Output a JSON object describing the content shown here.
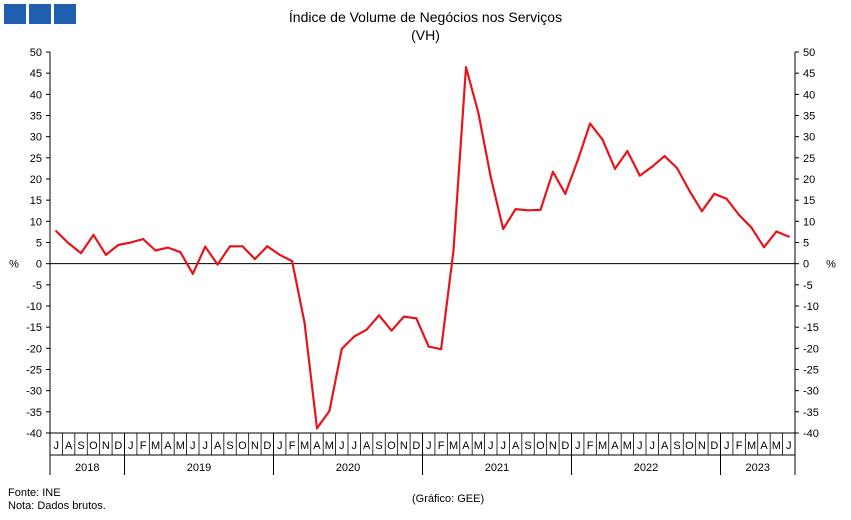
{
  "header": {
    "title": "Índice de Volume de Negócios nos Serviços",
    "subtitle": "(VH)"
  },
  "footer": {
    "source": "Fonte: INE",
    "note": "Nota: Dados brutos.",
    "credit": "(Gráfico: GEE)"
  },
  "colors": {
    "line": "#e8141b",
    "logo": "#1f5fae",
    "axis": "#000000"
  },
  "chart_data": {
    "type": "line",
    "title": "Índice de Volume de Negócios nos Serviços",
    "subtitle": "(VH)",
    "ylabel_left": "%",
    "ylabel_right": "%",
    "ylim": [
      -40,
      50
    ],
    "yticks": [
      50,
      45,
      40,
      35,
      30,
      25,
      20,
      15,
      10,
      5,
      0,
      -5,
      -10,
      -15,
      -20,
      -25,
      -30,
      -35,
      -40
    ],
    "grid": false,
    "legend": "none",
    "month_labels": [
      "J",
      "A",
      "S",
      "O",
      "N",
      "D",
      "J",
      "F",
      "M",
      "A",
      "M",
      "J",
      "J",
      "A",
      "S",
      "O",
      "N",
      "D",
      "J",
      "F",
      "M",
      "A",
      "M",
      "J",
      "J",
      "A",
      "S",
      "O",
      "N",
      "D",
      "J",
      "F",
      "M",
      "A",
      "M",
      "J",
      "J",
      "A",
      "S",
      "O",
      "N",
      "D",
      "J",
      "F",
      "M",
      "A",
      "M",
      "J",
      "J",
      "A",
      "S",
      "O",
      "N",
      "D",
      "J",
      "F",
      "M",
      "A",
      "M",
      "J"
    ],
    "years": [
      {
        "label": "2018",
        "start": 0,
        "end": 5
      },
      {
        "label": "2019",
        "start": 6,
        "end": 17
      },
      {
        "label": "2020",
        "start": 18,
        "end": 29
      },
      {
        "label": "2021",
        "start": 30,
        "end": 41
      },
      {
        "label": "2022",
        "start": 42,
        "end": 53
      },
      {
        "label": "2023",
        "start": 54,
        "end": 59
      }
    ],
    "series": [
      {
        "values": [
          7.7,
          4.8,
          2.5,
          6.8,
          2.1,
          4.4,
          5.0,
          5.8,
          3.1,
          3.8,
          2.7,
          -2.4,
          4.0,
          -0.2,
          4.1,
          4.1,
          1.1,
          4.1,
          2.1,
          0.6,
          -13.9,
          -38.9,
          -34.8,
          -20.1,
          -17.2,
          -15.6,
          -12.2,
          -15.8,
          -12.5,
          -12.9,
          -19.6,
          -20.2,
          3.1,
          46.4,
          35.6,
          20.4,
          8.2,
          12.9,
          12.6,
          12.7,
          21.7,
          16.5,
          24.4,
          33.1,
          29.3,
          22.4,
          26.6,
          20.8,
          22.9,
          25.4,
          22.6,
          17.2,
          12.4,
          16.5,
          15.3,
          11.5,
          8.5,
          3.9,
          7.6,
          6.4
        ]
      }
    ]
  }
}
